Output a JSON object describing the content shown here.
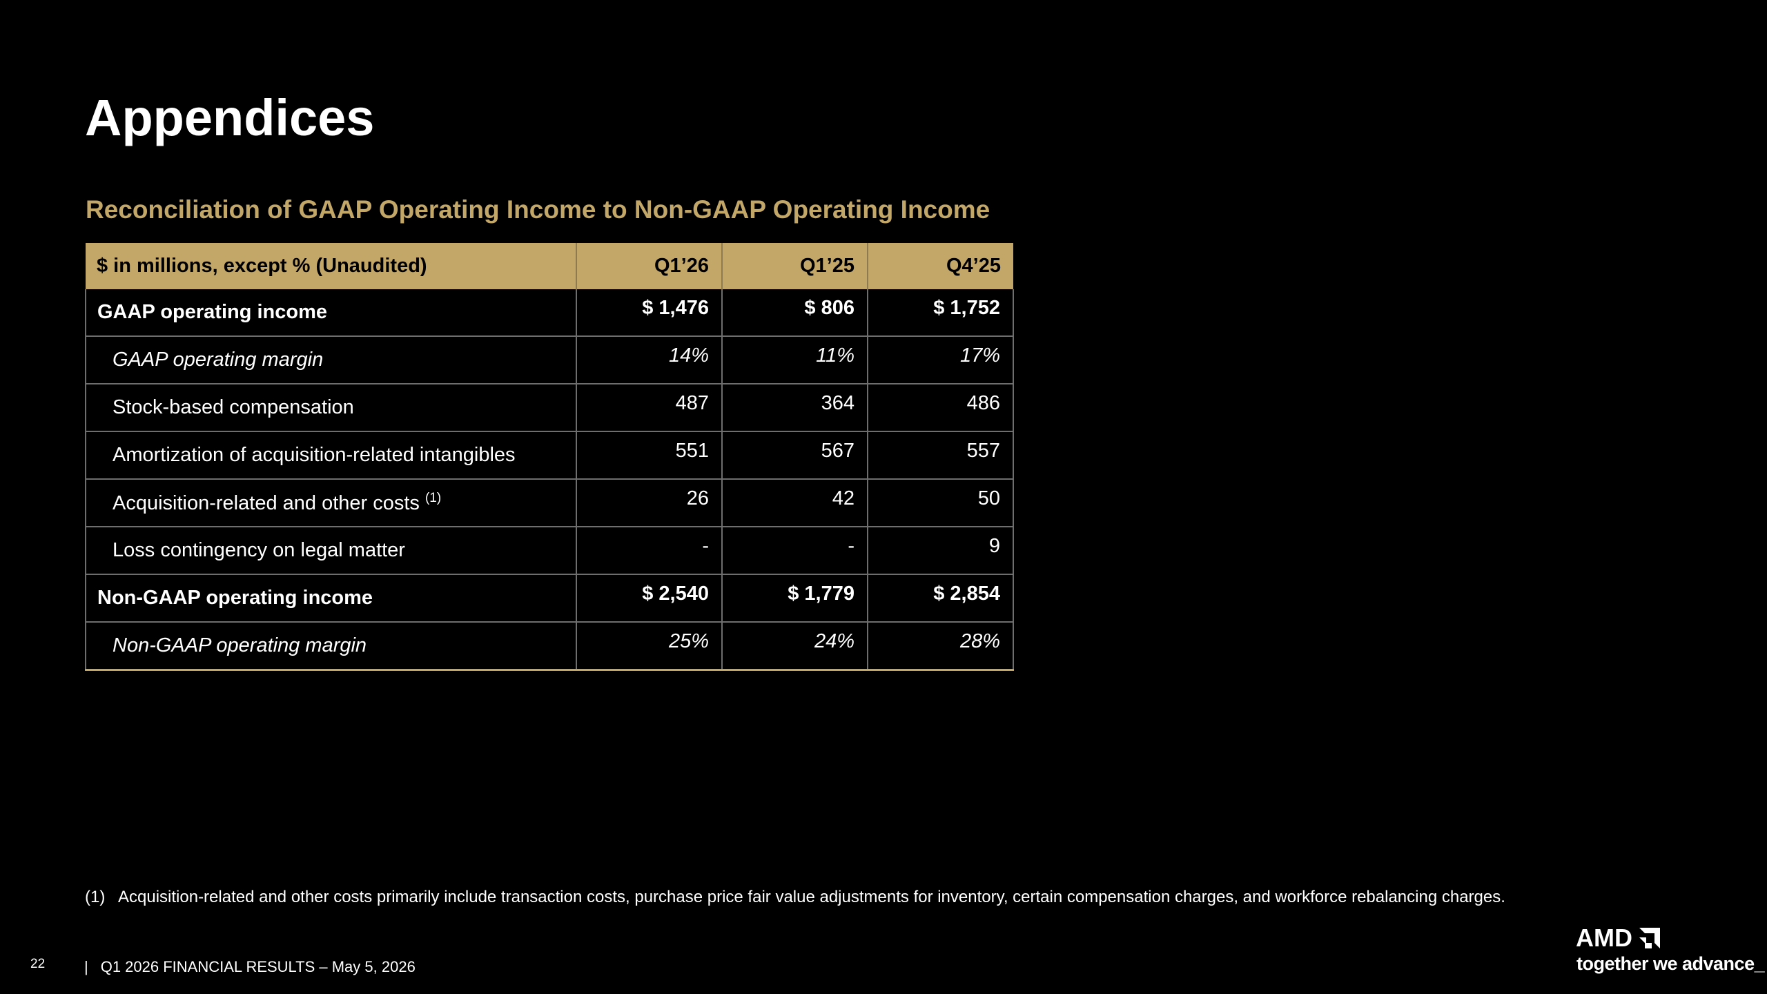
{
  "slide": {
    "title": "Appendices",
    "section_title": "Reconciliation of GAAP Operating Income to Non-GAAP Operating Income"
  },
  "table": {
    "header": {
      "label": "$ in millions, except % (Unaudited)",
      "columns": [
        "Q1’26",
        "Q1’25",
        "Q4’25"
      ]
    },
    "rows": [
      {
        "label": "GAAP operating income",
        "values": [
          "$ 1,476",
          "$ 806",
          "$ 1,752"
        ],
        "style": "bold"
      },
      {
        "label": "GAAP operating margin",
        "values": [
          "14%",
          "11%",
          "17%"
        ],
        "style": "italic"
      },
      {
        "label": "Stock-based compensation",
        "values": [
          "487",
          "364",
          "486"
        ],
        "style": "normal"
      },
      {
        "label": "Amortization of acquisition-related intangibles",
        "values": [
          "551",
          "567",
          "557"
        ],
        "style": "normal"
      },
      {
        "label": "Acquisition-related and other costs",
        "footnote_ref": "(1)",
        "values": [
          "26",
          "42",
          "50"
        ],
        "style": "normal"
      },
      {
        "label": "Loss contingency on legal matter",
        "values": [
          "-",
          "-",
          "9"
        ],
        "style": "normal"
      },
      {
        "label": "Non-GAAP operating income",
        "values": [
          "$ 2,540",
          "$ 1,779",
          "$ 2,854"
        ],
        "style": "bold"
      },
      {
        "label": "Non-GAAP operating margin",
        "values": [
          "25%",
          "24%",
          "28%"
        ],
        "style": "italic"
      }
    ]
  },
  "footnote": {
    "marker": "(1)",
    "text": "Acquisition-related and other costs primarily include transaction costs, purchase price fair value adjustments for inventory, certain compensation charges, and workforce rebalancing charges."
  },
  "footer": {
    "page_number": "22",
    "separator": "|",
    "text": "Q1 2026 FINANCIAL RESULTS – May 5, 2026"
  },
  "brand": {
    "logo_text": "AMD",
    "logo_icon": "amd-arrow-icon",
    "tagline": "together we advance_"
  },
  "colors": {
    "background": "#000000",
    "accent_gold": "#c2a769",
    "text": "#ffffff"
  }
}
